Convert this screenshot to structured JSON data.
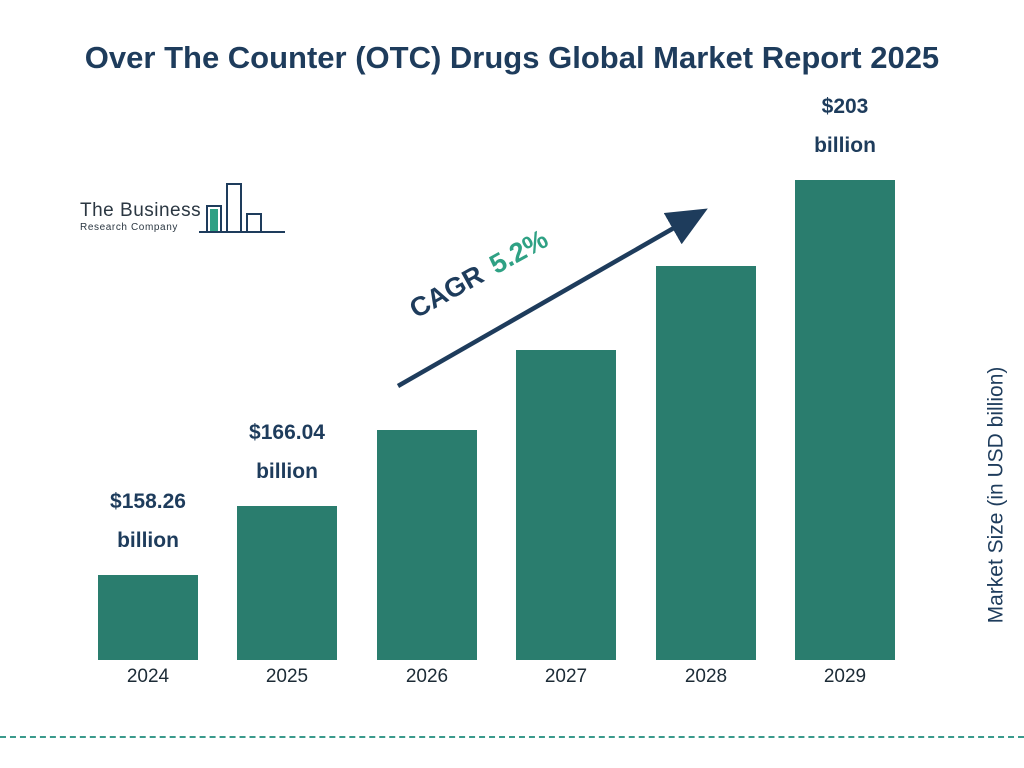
{
  "title": "Over The Counter (OTC) Drugs Global Market Report 2025",
  "logo": {
    "line1": "The Business",
    "line2": "Research Company"
  },
  "cagr": {
    "prefix": "CAGR",
    "value": "5.2%"
  },
  "y_axis_label": "Market Size (in USD billion)",
  "chart_data": {
    "type": "bar",
    "title": "Over The Counter (OTC) Drugs Global Market Report 2025",
    "categories": [
      "2024",
      "2025",
      "2026",
      "2027",
      "2028",
      "2029"
    ],
    "values": [
      158.26,
      166.04,
      174.7,
      183.8,
      193.3,
      203
    ],
    "bar_labels": [
      "$158.26 billion",
      "$166.04 billion",
      "",
      "",
      "",
      "$203 billion"
    ],
    "cagr": "5.2%",
    "xlabel": "",
    "ylabel": "Market Size (in USD billion)",
    "legend": "none",
    "grid": false,
    "colors": {
      "bar": "#2a7d6e",
      "title": "#1e3c5c",
      "cagr_accent": "#2fa184",
      "dashed_rule": "#3a9a8c"
    }
  }
}
